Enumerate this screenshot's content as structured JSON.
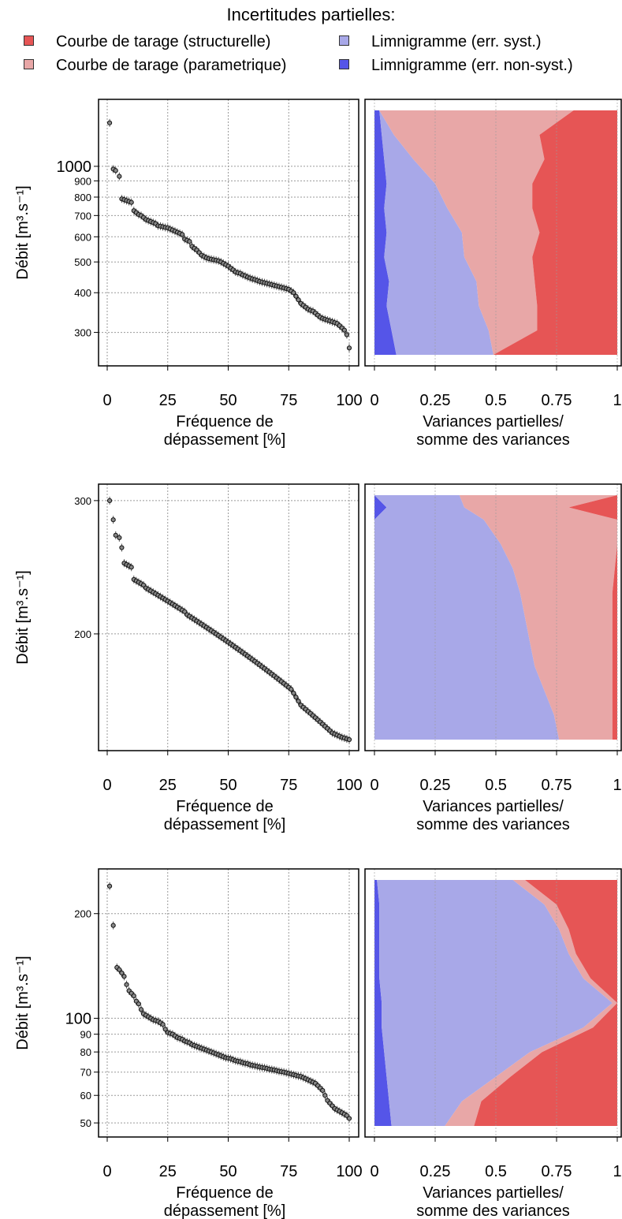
{
  "legend": {
    "title": "Incertitudes partielles:",
    "items": [
      {
        "label": "Courbe de tarage (structurelle)",
        "color": "#e65555"
      },
      {
        "label": "Courbe de tarage (parametrique)",
        "color": "#e8a7a7"
      },
      {
        "label": "Limnigramme (err. syst.)",
        "color": "#a8a8e8"
      },
      {
        "label": "Limnigramme (err. non-syst.)",
        "color": "#5555e8"
      }
    ]
  },
  "chart_data": [
    {
      "type": "scatter",
      "panel": "top-left",
      "ylabel": "Débit [m³.s⁻¹]",
      "xlabel": [
        "Fréquence de",
        "dépassement [%]"
      ],
      "x_ticks": [
        "0",
        "25",
        "50",
        "75",
        "100"
      ],
      "y_scale": "log",
      "ylim": [
        255,
        1500
      ],
      "y_ticks": [
        {
          "v": 300,
          "label": "300"
        },
        {
          "v": 400,
          "label": "400"
        },
        {
          "v": 500,
          "label": "500"
        },
        {
          "v": 600,
          "label": "600"
        },
        {
          "v": 700,
          "label": "700"
        },
        {
          "v": 800,
          "label": "800"
        },
        {
          "v": 900,
          "label": "900"
        },
        {
          "v": 1000,
          "label": "1000",
          "major": true
        }
      ],
      "x": [
        1,
        2.5,
        3.5,
        5,
        6,
        7,
        8,
        9,
        10,
        11,
        12,
        13,
        14,
        15,
        16,
        17,
        18,
        19,
        20,
        21,
        22,
        23,
        24,
        25,
        26,
        27,
        28,
        29,
        30,
        31,
        32,
        33,
        34,
        35,
        36,
        37,
        38,
        39,
        40,
        41,
        42,
        43,
        44,
        45,
        46,
        47,
        48,
        49,
        50,
        51,
        52,
        53,
        54,
        55,
        56,
        57,
        58,
        59,
        60,
        61,
        62,
        63,
        64,
        65,
        66,
        67,
        68,
        69,
        70,
        71,
        72,
        73,
        74,
        75,
        76,
        77,
        78,
        79,
        80,
        81,
        82,
        83,
        84,
        85,
        86,
        87,
        88,
        89,
        90,
        91,
        92,
        93,
        94,
        95,
        96,
        97,
        98,
        99,
        100
      ],
      "y": [
        1370,
        980,
        970,
        930,
        790,
        785,
        780,
        775,
        770,
        725,
        715,
        705,
        700,
        690,
        680,
        675,
        670,
        665,
        660,
        650,
        648,
        645,
        642,
        640,
        635,
        630,
        625,
        620,
        615,
        610,
        590,
        585,
        580,
        560,
        552,
        545,
        535,
        525,
        520,
        515,
        512,
        510,
        508,
        506,
        504,
        500,
        495,
        490,
        485,
        478,
        472,
        465,
        462,
        460,
        455,
        452,
        448,
        445,
        442,
        440,
        437,
        434,
        432,
        430,
        428,
        426,
        424,
        422,
        420,
        418,
        416,
        414,
        412,
        410,
        405,
        400,
        390,
        380,
        370,
        365,
        360,
        355,
        352,
        350,
        345,
        340,
        335,
        332,
        330,
        328,
        326,
        324,
        322,
        320,
        315,
        310,
        305,
        295,
        268
      ]
    },
    {
      "type": "area",
      "panel": "top-right",
      "xlabel": [
        "Variances partielles/",
        "somme des variances"
      ],
      "x_ticks": [
        "0",
        "0.25",
        "0.5",
        "0.75",
        "1"
      ],
      "xlim": [
        0,
        1
      ],
      "stack_order": [
        "Limnigramme (err. non-syst.)",
        "Limnigramme (err. syst.)",
        "Courbe de tarage (parametrique)",
        "Courbe de tarage (structurelle)"
      ],
      "t": [
        0,
        0.1,
        0.2,
        0.3,
        0.4,
        0.5,
        0.6,
        0.7,
        0.8,
        0.9,
        1
      ],
      "series": [
        {
          "name": "Limnigramme (err. non-syst.)",
          "values": [
            0.02,
            0.03,
            0.04,
            0.05,
            0.04,
            0.05,
            0.04,
            0.06,
            0.05,
            0.07,
            0.09
          ]
        },
        {
          "name": "Limnigramme (err. syst.)",
          "values": [
            0.0,
            0.05,
            0.12,
            0.2,
            0.26,
            0.31,
            0.33,
            0.36,
            0.38,
            0.4,
            0.4
          ]
        },
        {
          "name": "Courbe de tarage (parametrique)",
          "values": [
            0.8,
            0.6,
            0.54,
            0.4,
            0.35,
            0.32,
            0.28,
            0.24,
            0.24,
            0.2,
            0.0
          ]
        },
        {
          "name": "Courbe de tarage (structurelle)",
          "values": [
            0.18,
            0.32,
            0.3,
            0.35,
            0.35,
            0.32,
            0.35,
            0.34,
            0.33,
            0.33,
            0.51
          ]
        }
      ]
    },
    {
      "type": "scatter",
      "panel": "middle-left",
      "ylabel": "Débit [m³.s⁻¹]",
      "xlabel": [
        "Fréquence de",
        "dépassement [%]"
      ],
      "x_ticks": [
        "0",
        "25",
        "50",
        "75",
        "100"
      ],
      "y_scale": "log",
      "ylim": [
        145,
        305
      ],
      "y_ticks": [
        {
          "v": 200,
          "label": "200"
        },
        {
          "v": 300,
          "label": "300"
        }
      ],
      "x": [
        1,
        2.5,
        3.5,
        5,
        6,
        7,
        8,
        9,
        10,
        11,
        12,
        13,
        14,
        15,
        16,
        17,
        18,
        19,
        20,
        21,
        22,
        23,
        24,
        25,
        26,
        27,
        28,
        29,
        30,
        31,
        32,
        33,
        34,
        35,
        36,
        37,
        38,
        39,
        40,
        41,
        42,
        43,
        44,
        45,
        46,
        47,
        48,
        49,
        50,
        51,
        52,
        53,
        54,
        55,
        56,
        57,
        58,
        59,
        60,
        61,
        62,
        63,
        64,
        65,
        66,
        67,
        68,
        69,
        70,
        71,
        72,
        73,
        74,
        75,
        76,
        77,
        78,
        79,
        80,
        81,
        82,
        83,
        84,
        85,
        86,
        87,
        88,
        89,
        90,
        91,
        92,
        93,
        94,
        95,
        96,
        97,
        98,
        99,
        100
      ],
      "y": [
        300,
        283,
        270,
        268,
        260,
        248,
        247,
        246,
        245,
        236,
        235,
        234,
        233,
        232,
        230,
        229,
        228,
        227,
        226,
        225,
        224,
        223,
        222,
        221,
        220,
        219,
        218,
        217,
        216,
        215,
        214,
        212,
        211,
        210,
        209,
        208,
        207,
        206,
        205,
        204,
        203,
        202,
        201,
        200,
        199,
        198,
        197,
        196,
        195,
        194,
        193,
        192,
        191,
        190,
        189,
        188,
        187,
        186,
        185,
        184,
        183,
        182,
        181,
        180,
        179,
        178,
        177,
        176,
        175,
        174,
        173,
        172,
        171,
        170,
        169,
        167,
        165,
        163,
        161,
        160,
        159,
        158,
        157,
        156,
        155,
        154,
        153,
        152,
        151,
        150,
        149,
        148,
        147.5,
        147,
        146.5,
        146,
        145.7,
        145.3,
        145
      ]
    },
    {
      "type": "area",
      "panel": "middle-right",
      "xlabel": [
        "Variances partielles/",
        "somme des variances"
      ],
      "x_ticks": [
        "0",
        "0.25",
        "0.5",
        "0.75",
        "1"
      ],
      "xlim": [
        0,
        1
      ],
      "stack_order": [
        "Limnigramme (err. non-syst.)",
        "Limnigramme (err. syst.)",
        "Courbe de tarage (parametrique)",
        "Courbe de tarage (structurelle)"
      ],
      "t": [
        0,
        0.05,
        0.1,
        0.2,
        0.3,
        0.4,
        0.5,
        0.6,
        0.7,
        0.8,
        0.9,
        1
      ],
      "series": [
        {
          "name": "Limnigramme (err. non-syst.)",
          "values": [
            0.0,
            0.05,
            0.0,
            0.0,
            0.0,
            0.0,
            0.0,
            0.0,
            0.0,
            0.0,
            0.0,
            0.0
          ]
        },
        {
          "name": "Limnigramme (err. syst.)",
          "values": [
            0.35,
            0.32,
            0.45,
            0.52,
            0.57,
            0.6,
            0.62,
            0.64,
            0.66,
            0.7,
            0.74,
            0.76
          ]
        },
        {
          "name": "Courbe de tarage (parametrique)",
          "values": [
            0.65,
            0.43,
            0.55,
            0.48,
            0.42,
            0.38,
            0.36,
            0.34,
            0.32,
            0.28,
            0.24,
            0.22
          ]
        },
        {
          "name": "Courbe de tarage (structurelle)",
          "values": [
            0.0,
            0.2,
            0.0,
            0.0,
            0.01,
            0.02,
            0.02,
            0.02,
            0.02,
            0.02,
            0.02,
            0.02
          ]
        }
      ]
    },
    {
      "type": "scatter",
      "panel": "bottom-left",
      "ylabel": "Débit [m³.s⁻¹]",
      "xlabel": [
        "Fréquence de",
        "dépassement [%]"
      ],
      "x_ticks": [
        "0",
        "25",
        "50",
        "75",
        "100"
      ],
      "y_scale": "log",
      "ylim": [
        49,
        250
      ],
      "y_ticks": [
        {
          "v": 50,
          "label": "50"
        },
        {
          "v": 60,
          "label": "60"
        },
        {
          "v": 70,
          "label": "70"
        },
        {
          "v": 80,
          "label": "80"
        },
        {
          "v": 90,
          "label": "90"
        },
        {
          "v": 100,
          "label": "100",
          "major": true
        },
        {
          "v": 200,
          "label": "200"
        }
      ],
      "x": [
        1,
        2.5,
        4,
        5,
        6,
        7,
        8,
        9,
        10,
        11,
        12,
        13,
        14,
        15,
        16,
        17,
        18,
        19,
        20,
        21,
        22,
        23,
        24,
        25,
        26,
        27,
        28,
        29,
        30,
        31,
        32,
        33,
        34,
        35,
        36,
        37,
        38,
        39,
        40,
        41,
        42,
        43,
        44,
        45,
        46,
        47,
        48,
        49,
        50,
        51,
        52,
        53,
        54,
        55,
        56,
        57,
        58,
        59,
        60,
        61,
        62,
        63,
        64,
        65,
        66,
        67,
        68,
        69,
        70,
        71,
        72,
        73,
        74,
        75,
        76,
        77,
        78,
        79,
        80,
        81,
        82,
        83,
        84,
        85,
        86,
        87,
        88,
        89,
        90,
        91,
        92,
        93,
        94,
        95,
        96,
        97,
        98,
        99,
        100
      ],
      "y": [
        240,
        185,
        140,
        138,
        135,
        132,
        125,
        120,
        118,
        116,
        112,
        110,
        106,
        103,
        102,
        101,
        100,
        99,
        98.5,
        98,
        97,
        96,
        93,
        91,
        90.5,
        90,
        89,
        88,
        87.5,
        87,
        86,
        85.5,
        85,
        84,
        83.5,
        83,
        82.5,
        82,
        81.5,
        81,
        80.5,
        80,
        79.5,
        79,
        78.5,
        78,
        77.5,
        77,
        76.8,
        76.5,
        76,
        75.5,
        75.2,
        75,
        74.5,
        74.2,
        74,
        73.5,
        73.2,
        73,
        72.7,
        72.4,
        72.2,
        72,
        71.7,
        71.4,
        71.2,
        71,
        70.7,
        70.4,
        70.2,
        70,
        69.7,
        69.4,
        69.1,
        68.8,
        68.5,
        68.2,
        68,
        67.5,
        67,
        66.5,
        66,
        65.5,
        65,
        64,
        63,
        62,
        60,
        58,
        57,
        56,
        55,
        54.5,
        54,
        53.5,
        53,
        52.5,
        51.5
      ]
    },
    {
      "type": "area",
      "panel": "bottom-right",
      "xlabel": [
        "Variances partielles/",
        "somme des variances"
      ],
      "x_ticks": [
        "0",
        "0.25",
        "0.5",
        "0.75",
        "1"
      ],
      "xlim": [
        0,
        1
      ],
      "stack_order": [
        "Limnigramme (err. non-syst.)",
        "Limnigramme (err. syst.)",
        "Courbe de tarage (parametrique)",
        "Courbe de tarage (structurelle)"
      ],
      "t": [
        0,
        0.1,
        0.2,
        0.3,
        0.4,
        0.5,
        0.6,
        0.7,
        0.8,
        0.9,
        1
      ],
      "series": [
        {
          "name": "Limnigramme (err. non-syst.)",
          "values": [
            0.01,
            0.02,
            0.02,
            0.02,
            0.02,
            0.03,
            0.03,
            0.04,
            0.05,
            0.06,
            0.07
          ]
        },
        {
          "name": "Limnigramme (err. syst.)",
          "values": [
            0.56,
            0.68,
            0.74,
            0.78,
            0.84,
            0.95,
            0.83,
            0.6,
            0.45,
            0.3,
            0.22
          ]
        },
        {
          "name": "Courbe de tarage (parametrique)",
          "values": [
            0.05,
            0.05,
            0.04,
            0.03,
            0.03,
            0.02,
            0.04,
            0.05,
            0.06,
            0.08,
            0.12
          ]
        },
        {
          "name": "Courbe de tarage (structurelle)",
          "values": [
            0.38,
            0.25,
            0.2,
            0.17,
            0.11,
            0.0,
            0.1,
            0.31,
            0.44,
            0.56,
            0.59
          ]
        }
      ]
    }
  ]
}
